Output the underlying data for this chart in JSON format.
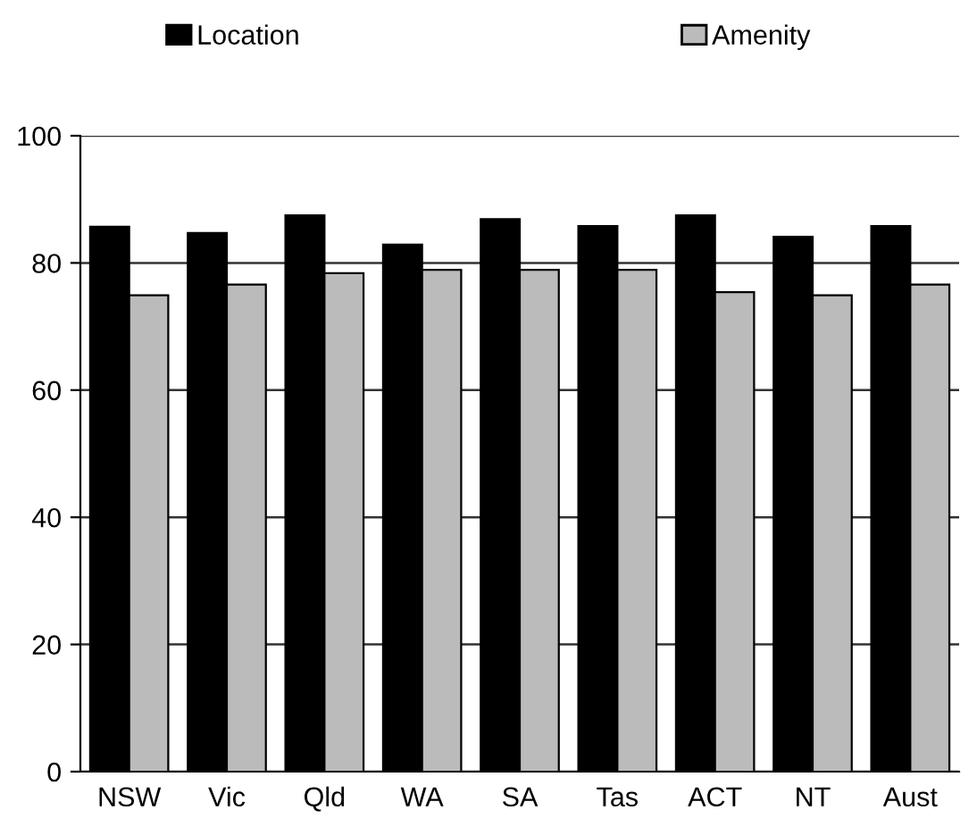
{
  "chart_data": {
    "type": "bar",
    "categories": [
      "NSW",
      "Vic",
      "Qld",
      "WA",
      "SA",
      "Tas",
      "ACT",
      "NT",
      "Aust"
    ],
    "series": [
      {
        "name": "Location",
        "color": "#000000",
        "values": [
          85.7,
          84.7,
          87.5,
          82.9,
          86.9,
          85.8,
          87.5,
          84.1,
          85.8
        ]
      },
      {
        "name": "Amenity",
        "color": "#bbbbbb",
        "values": [
          74.9,
          76.6,
          78.4,
          78.9,
          78.9,
          78.9,
          75.4,
          74.9,
          76.6
        ]
      }
    ],
    "ylim": [
      0,
      100
    ],
    "yticks": [
      0,
      20,
      40,
      60,
      80,
      100
    ],
    "grid": "y",
    "legend": "top"
  }
}
